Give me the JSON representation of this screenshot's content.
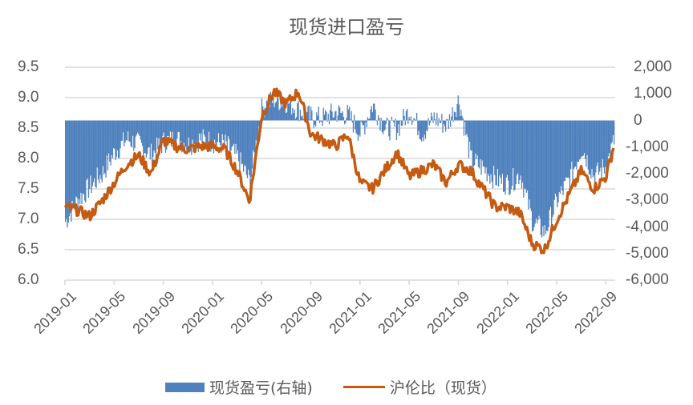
{
  "chart_data": {
    "type": "bar+line",
    "title": "现货进口盈亏",
    "xlabel": "",
    "ylabel_left": "",
    "ylabel_right": "",
    "ylim_left": [
      6.0,
      9.5
    ],
    "ylim_right": [
      -6000,
      2000
    ],
    "yticks_left": [
      "9.5",
      "9.0",
      "8.5",
      "8.0",
      "7.5",
      "7.0",
      "6.5",
      "6.0"
    ],
    "yticks_right": [
      "2,000",
      "1,000",
      "0",
      "-1,000",
      "-2,000",
      "-3,000",
      "-4,000",
      "-5,000",
      "-6,000"
    ],
    "xticks": [
      "2019-01",
      "2019-05",
      "2019-09",
      "2020-01",
      "2020-05",
      "2020-09",
      "2021-01",
      "2021-05",
      "2021-09",
      "2022-01",
      "2022-05",
      "2022-09"
    ],
    "grid": true,
    "legend_position": "bottom",
    "x": [
      "2019-01",
      "2019-02",
      "2019-03",
      "2019-04",
      "2019-05",
      "2019-06",
      "2019-07",
      "2019-08",
      "2019-09",
      "2019-10",
      "2019-11",
      "2019-12",
      "2020-01",
      "2020-02",
      "2020-03",
      "2020-04",
      "2020-05",
      "2020-06",
      "2020-07",
      "2020-08",
      "2020-09",
      "2020-10",
      "2020-11",
      "2020-12",
      "2021-01",
      "2021-02",
      "2021-03",
      "2021-04",
      "2021-05",
      "2021-06",
      "2021-07",
      "2021-08",
      "2021-09",
      "2021-10",
      "2021-11",
      "2021-12",
      "2022-01",
      "2022-02",
      "2022-03",
      "2022-04",
      "2022-05",
      "2022-06",
      "2022-07",
      "2022-08",
      "2022-09",
      "2022-10"
    ],
    "series": [
      {
        "name": "现货盈亏(右轴)",
        "type": "bar",
        "axis": "right",
        "color": "#4F81BD",
        "values": [
          -3800,
          -3000,
          -2500,
          -2000,
          -1200,
          -700,
          -900,
          -1300,
          -800,
          -700,
          -900,
          -700,
          -800,
          -900,
          -1400,
          -2300,
          500,
          800,
          700,
          400,
          100,
          100,
          300,
          200,
          -500,
          600,
          -300,
          -300,
          400,
          -500,
          100,
          -200,
          800,
          -1500,
          -1800,
          -2200,
          -2400,
          -2000,
          -3800,
          -4200,
          -3000,
          -2200,
          -1000,
          -2100,
          -1700,
          -200
        ]
      },
      {
        "name": "沪伦比（现货）",
        "type": "line",
        "axis": "left",
        "color": "#C55A11",
        "values": [
          7.2,
          7.15,
          7.05,
          7.3,
          7.6,
          7.9,
          8.05,
          7.75,
          8.3,
          8.2,
          8.15,
          8.2,
          8.2,
          8.15,
          7.8,
          7.3,
          8.7,
          9.1,
          8.9,
          9.1,
          8.4,
          8.3,
          8.2,
          8.4,
          7.6,
          7.5,
          7.8,
          8.1,
          7.7,
          7.8,
          7.9,
          7.6,
          7.9,
          7.8,
          7.5,
          7.2,
          7.2,
          7.1,
          6.6,
          6.5,
          7.0,
          7.4,
          7.8,
          7.5,
          7.7,
          8.5
        ]
      }
    ]
  },
  "legend": {
    "bar_label": "现货盈亏(右轴)",
    "line_label": "沪伦比（现货）"
  }
}
